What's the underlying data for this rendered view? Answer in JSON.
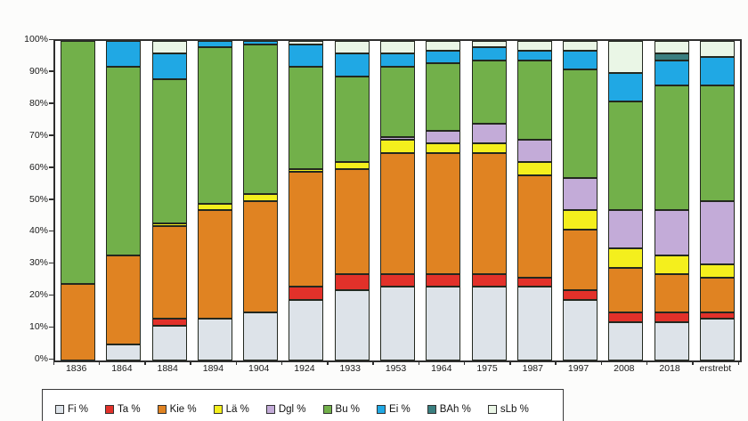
{
  "chart_data": {
    "type": "bar",
    "variant": "stacked-100-percent-column",
    "title": "",
    "xlabel": "",
    "ylabel": "",
    "unit": "%",
    "ylim": [
      0,
      100
    ],
    "y_tick_step": 10,
    "y_tick_labels": [
      "0%",
      "10%",
      "20%",
      "30%",
      "40%",
      "50%",
      "60%",
      "70%",
      "80%",
      "90%",
      "100%"
    ],
    "grid": false,
    "legend_position": "bottom",
    "categories": [
      "1836",
      "1864",
      "1884",
      "1894",
      "1904",
      "1924",
      "1933",
      "1953",
      "1964",
      "1975",
      "1987",
      "1997",
      "2008",
      "2018",
      "erstrebt"
    ],
    "series": [
      {
        "name": "Fi %",
        "color": "#dde3e9",
        "values": [
          0,
          5,
          11,
          13,
          15,
          19,
          22,
          23,
          23,
          23,
          23,
          19,
          12,
          12,
          13
        ]
      },
      {
        "name": "Ta %",
        "color": "#e2312a",
        "values": [
          0,
          0,
          2,
          0,
          0,
          4,
          5,
          4,
          4,
          4,
          3,
          3,
          3,
          3,
          2
        ]
      },
      {
        "name": "Kie %",
        "color": "#e08322",
        "values": [
          24,
          28,
          29,
          34,
          35,
          36,
          33,
          38,
          38,
          38,
          32,
          19,
          14,
          12,
          11
        ]
      },
      {
        "name": "Lä %",
        "color": "#f4ef1d",
        "values": [
          0,
          0,
          1,
          2,
          2,
          1,
          2,
          4,
          3,
          3,
          4,
          6,
          6,
          6,
          4
        ]
      },
      {
        "name": "Dgl %",
        "color": "#c3abd8",
        "values": [
          0,
          0,
          0,
          0,
          0,
          0,
          0,
          1,
          4,
          6,
          7,
          10,
          12,
          14,
          20
        ]
      },
      {
        "name": "Bu %",
        "color": "#72b04a",
        "values": [
          76,
          59,
          45,
          49,
          47,
          32,
          27,
          22,
          21,
          20,
          25,
          34,
          34,
          39,
          36
        ]
      },
      {
        "name": "Ei %",
        "color": "#20a8e4",
        "values": [
          0,
          8,
          8,
          2,
          1,
          7,
          7,
          4,
          4,
          4,
          3,
          6,
          9,
          8,
          9
        ]
      },
      {
        "name": "BAh %",
        "color": "#3a7f80",
        "values": [
          0,
          0,
          0,
          0,
          0,
          0,
          0,
          0,
          0,
          0,
          0,
          0,
          0,
          2,
          0
        ]
      },
      {
        "name": "sLb %",
        "color": "#eaf6e6",
        "values": [
          0,
          0,
          4,
          0,
          0,
          1,
          4,
          4,
          3,
          2,
          3,
          3,
          10,
          4,
          5
        ]
      }
    ]
  }
}
